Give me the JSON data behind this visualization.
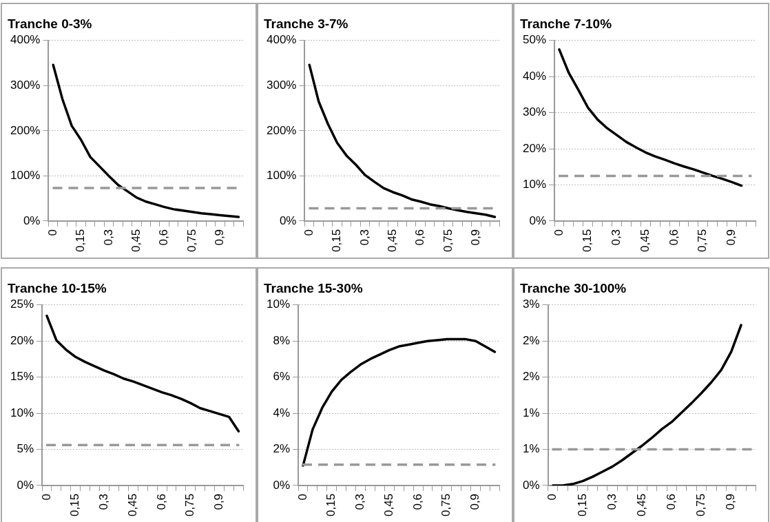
{
  "chart_data": [
    {
      "type": "line",
      "title": "Tranche 0-3%",
      "categories": [
        "0",
        null,
        null,
        "0,15",
        null,
        null,
        "0,3",
        null,
        null,
        "0,45",
        null,
        null,
        "0,6",
        null,
        null,
        "0,75",
        null,
        null,
        "0,9",
        null,
        null
      ],
      "series": [
        {
          "color": "#000000",
          "values": [
            346,
            270,
            211,
            180,
            142,
            121,
            100,
            80,
            66,
            52,
            43,
            37,
            31,
            26,
            23,
            20,
            17,
            15,
            13,
            11,
            9
          ]
        }
      ],
      "ylim": [
        0,
        400
      ],
      "yticks": [
        {
          "value": 0,
          "label": "0%"
        },
        {
          "value": 100,
          "label": "100%"
        },
        {
          "value": 200,
          "label": "200%"
        },
        {
          "value": 300,
          "label": "300%"
        },
        {
          "value": 400,
          "label": "400%"
        }
      ],
      "grid": "y",
      "marker": "none",
      "ref_lines": [
        {
          "axis": "y",
          "value": 73,
          "color": "#999999",
          "line_style": "dashed"
        }
      ]
    },
    {
      "type": "line",
      "title": "Tranche 3-7%",
      "categories": [
        "0",
        null,
        null,
        "0,15",
        null,
        null,
        "0,3",
        null,
        null,
        "0,45",
        null,
        null,
        "0,6",
        null,
        null,
        "0,75",
        null,
        null,
        "0,9",
        null,
        null
      ],
      "series": [
        {
          "color": "#000000",
          "values": [
            346,
            265,
            215,
            173,
            145,
            125,
            102,
            87,
            73,
            64,
            57,
            48,
            43,
            37,
            33,
            28,
            24,
            20,
            17,
            14,
            9
          ]
        }
      ],
      "ylim": [
        0,
        400
      ],
      "yticks": [
        {
          "value": 0,
          "label": "0%"
        },
        {
          "value": 100,
          "label": "100%"
        },
        {
          "value": 200,
          "label": "200%"
        },
        {
          "value": 300,
          "label": "300%"
        },
        {
          "value": 400,
          "label": "400%"
        }
      ],
      "grid": "y",
      "marker": "none",
      "ref_lines": [
        {
          "axis": "y",
          "value": 28,
          "color": "#999999",
          "line_style": "dashed"
        }
      ]
    },
    {
      "type": "line",
      "title": "Tranche 7-10%",
      "categories": [
        "0",
        null,
        null,
        "0,15",
        null,
        null,
        "0,3",
        null,
        null,
        "0,45",
        null,
        null,
        "0,6",
        null,
        null,
        "0,75",
        null,
        null,
        "0,9",
        null,
        null
      ],
      "series": [
        {
          "color": "#000000",
          "values": [
            47.5,
            41,
            36.3,
            31.4,
            28.1,
            25.7,
            23.8,
            21.9,
            20.4,
            19,
            17.9,
            17,
            16,
            15.1,
            14.3,
            13.4,
            12.5,
            11.7,
            10.8,
            9.8,
            null
          ]
        }
      ],
      "ylim": [
        0,
        50
      ],
      "yticks": [
        {
          "value": 0,
          "label": "0%"
        },
        {
          "value": 10,
          "label": "10%"
        },
        {
          "value": 20,
          "label": "20%"
        },
        {
          "value": 30,
          "label": "30%"
        },
        {
          "value": 40,
          "label": "40%"
        },
        {
          "value": 50,
          "label": "50%"
        }
      ],
      "grid": "y",
      "marker": "none",
      "ref_lines": [
        {
          "axis": "y",
          "value": 12.5,
          "color": "#999999",
          "line_style": "dashed"
        }
      ]
    },
    {
      "type": "line",
      "title": "Tranche 10-15%",
      "categories": [
        "0",
        null,
        null,
        "0,15",
        null,
        null,
        "0,3",
        null,
        null,
        "0,45",
        null,
        null,
        "0,6",
        null,
        null,
        "0,75",
        null,
        null,
        "0,9",
        null,
        null
      ],
      "series": [
        {
          "color": "#000000",
          "values": [
            23.5,
            20.1,
            18.8,
            17.8,
            17.1,
            16.5,
            15.9,
            15.4,
            14.8,
            14.4,
            13.9,
            13.4,
            12.9,
            12.5,
            12,
            11.4,
            10.7,
            10.3,
            9.9,
            9.5,
            7.5
          ]
        }
      ],
      "ylim": [
        0,
        25
      ],
      "yticks": [
        {
          "value": 0,
          "label": "0%"
        },
        {
          "value": 5,
          "label": "5%"
        },
        {
          "value": 10,
          "label": "10%"
        },
        {
          "value": 15,
          "label": "15%"
        },
        {
          "value": 20,
          "label": "20%"
        },
        {
          "value": 25,
          "label": "25%"
        }
      ],
      "grid": "y",
      "marker": "none",
      "ref_lines": [
        {
          "axis": "y",
          "value": 5.6,
          "color": "#999999",
          "line_style": "dashed"
        }
      ]
    },
    {
      "type": "line",
      "title": "Tranche 15-30%",
      "categories": [
        "0",
        null,
        null,
        "0,15",
        null,
        null,
        "0,3",
        null,
        null,
        "0,45",
        null,
        null,
        "0,6",
        null,
        null,
        "0,75",
        null,
        null,
        "0,9",
        null,
        null
      ],
      "series": [
        {
          "color": "#000000",
          "values": [
            1.1,
            3.1,
            4.3,
            5.2,
            5.85,
            6.3,
            6.7,
            7,
            7.25,
            7.5,
            7.7,
            7.8,
            7.9,
            8,
            8.05,
            8.1,
            8.1,
            8.1,
            8,
            7.7,
            7.4
          ]
        }
      ],
      "ylim": [
        0,
        10
      ],
      "yticks": [
        {
          "value": 0,
          "label": "0%"
        },
        {
          "value": 2,
          "label": "2%"
        },
        {
          "value": 4,
          "label": "4%"
        },
        {
          "value": 6,
          "label": "6%"
        },
        {
          "value": 8,
          "label": "8%"
        },
        {
          "value": 10,
          "label": "10%"
        }
      ],
      "grid": "y",
      "marker": "none",
      "ref_lines": [
        {
          "axis": "y",
          "value": 1.15,
          "color": "#999999",
          "line_style": "dashed"
        }
      ]
    },
    {
      "type": "line",
      "title": "Tranche 30-100%",
      "categories": [
        "0",
        null,
        null,
        "0,15",
        null,
        null,
        "0,3",
        null,
        null,
        "0,45",
        null,
        null,
        "0,6",
        null,
        null,
        "0,75",
        null,
        null,
        "0,9",
        null,
        null
      ],
      "series": [
        {
          "color": "#000000",
          "values": [
            0,
            0,
            0.02,
            0.06,
            0.12,
            0.19,
            0.26,
            0.35,
            0.45,
            0.55,
            0.66,
            0.78,
            0.88,
            1.01,
            1.14,
            1.28,
            1.43,
            1.6,
            1.85,
            2.22,
            null
          ]
        }
      ],
      "ylim": [
        0,
        2.5
      ],
      "yticks": [
        {
          "value": 0,
          "label": "0%"
        },
        {
          "value": 0.5,
          "label": "1%"
        },
        {
          "value": 1,
          "label": "1%"
        },
        {
          "value": 1.5,
          "label": "2%"
        },
        {
          "value": 2,
          "label": "2%"
        },
        {
          "value": 2.5,
          "label": "3%"
        }
      ],
      "grid": "y",
      "marker": "none",
      "ref_lines": [
        {
          "axis": "y",
          "value": 0.5,
          "color": "#999999",
          "line_style": "dashed"
        }
      ]
    }
  ]
}
